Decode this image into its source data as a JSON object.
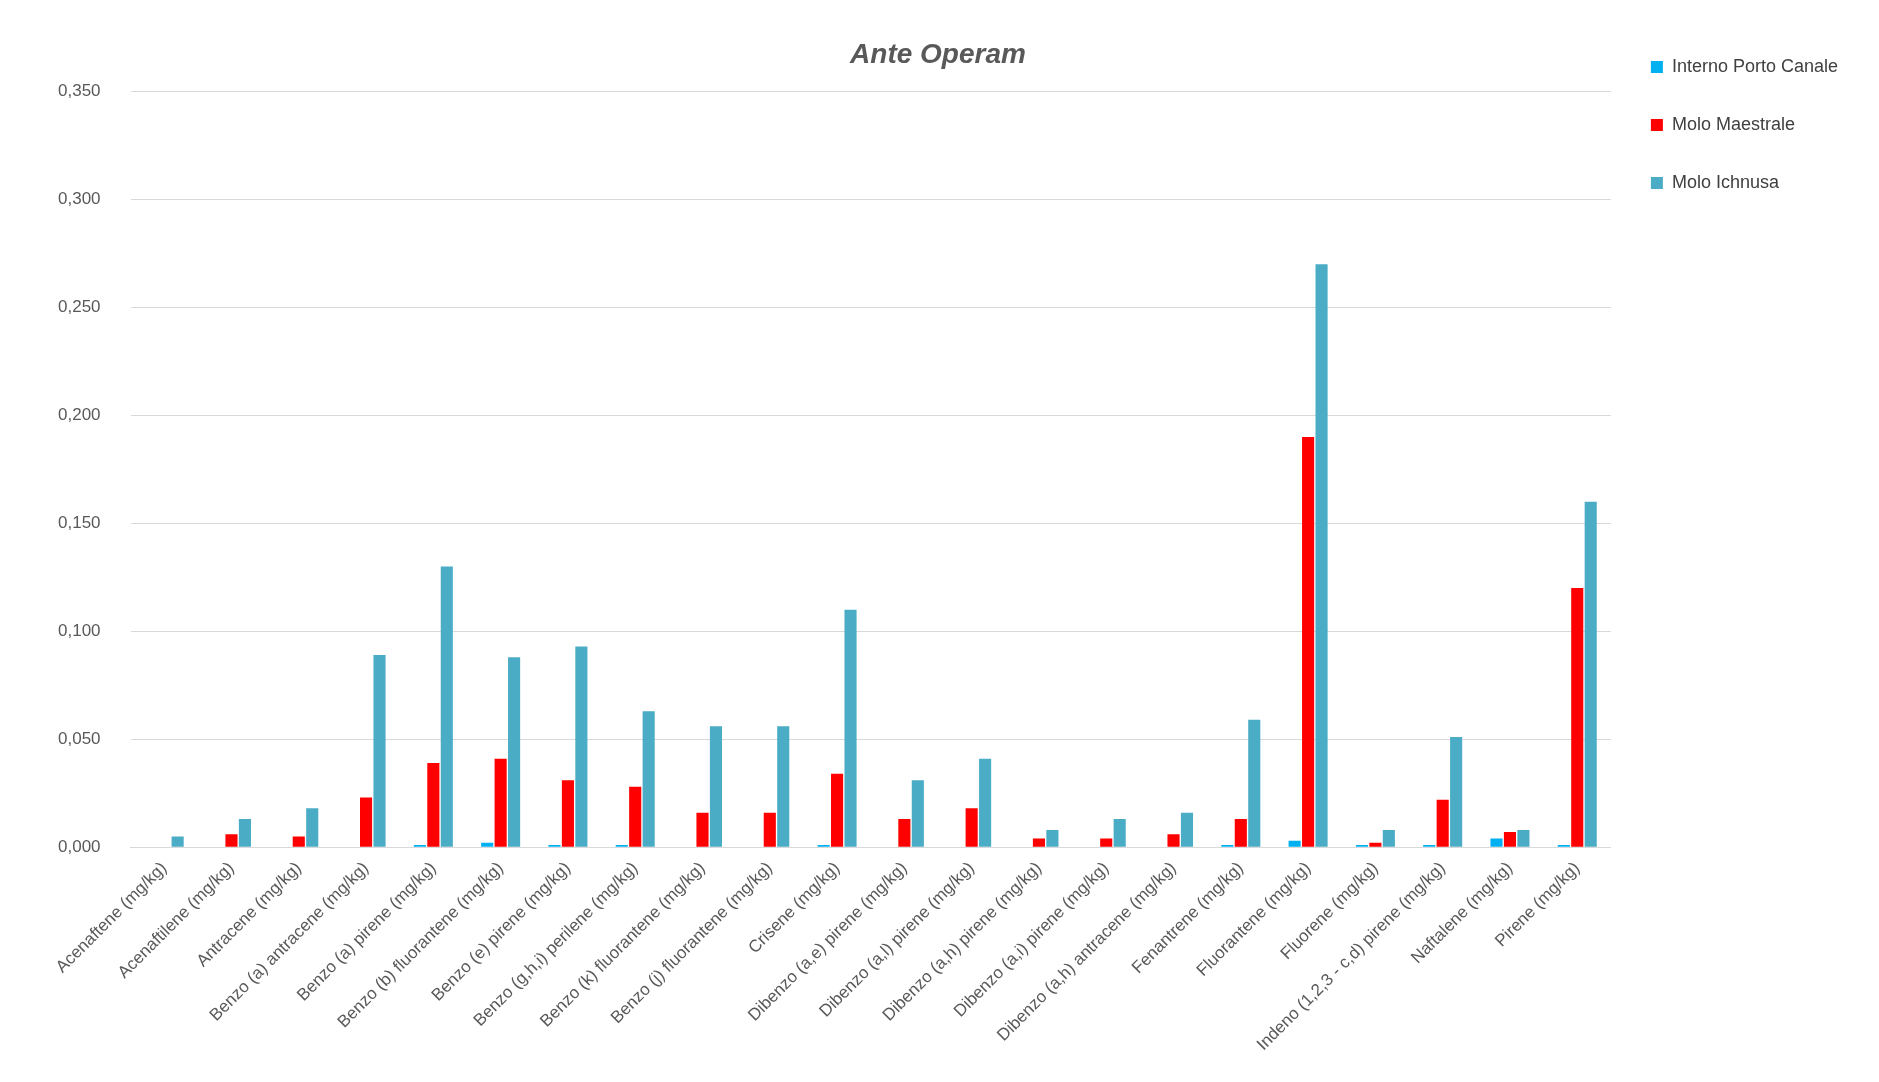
{
  "chart_data": {
    "type": "bar",
    "title": "Ante Operam",
    "categories": [
      "Acenaftene (mg/kg)",
      "Acenaftilene (mg/kg)",
      "Antracene (mg/kg)",
      "Benzo (a) antracene (mg/kg)",
      "Benzo (a) pirene (mg/kg)",
      "Benzo (b) fluorantene (mg/kg)",
      "Benzo (e) pirene (mg/kg)",
      "Benzo (g,h,i) perilene (mg/kg)",
      "Benzo (k) fluorantene (mg/kg)",
      "Benzo (j) fluorantene (mg/kg)",
      "Crisene (mg/kg)",
      "Dibenzo (a,e) pirene (mg/kg)",
      "Dibenzo (a,l) pirene (mg/kg)",
      "Dibenzo (a,h) pirene (mg/kg)",
      "Dibenzo (a,i) pirene (mg/kg)",
      "Dibenzo (a,h) antracene (mg/kg)",
      "Fenantrene (mg/kg)",
      "Fluorantene (mg/kg)",
      "Fluorene (mg/kg)",
      "Indeno (1,2,3 - c,d) pirene (mg/kg)",
      "Naftalene (mg/kg)",
      "Pirene (mg/kg)"
    ],
    "series": [
      {
        "name": "Interno Porto Canale",
        "color": "#00b0f0",
        "values": [
          0,
          0,
          0,
          0,
          0.001,
          0.002,
          0.001,
          0.001,
          0,
          0,
          0.001,
          0,
          0,
          0,
          0,
          0,
          0.001,
          0.003,
          0.001,
          0.001,
          0.004,
          0.001
        ]
      },
      {
        "name": "Molo Maestrale",
        "color": "#ff0000",
        "values": [
          0,
          0.006,
          0.005,
          0.023,
          0.039,
          0.041,
          0.031,
          0.028,
          0.016,
          0.016,
          0.034,
          0.013,
          0.018,
          0.004,
          0.004,
          0.006,
          0.013,
          0.19,
          0.002,
          0.022,
          0.007,
          0.12
        ]
      },
      {
        "name": "Molo Ichnusa",
        "color": "#4bacc6",
        "values": [
          0.005,
          0.013,
          0.018,
          0.089,
          0.13,
          0.088,
          0.093,
          0.063,
          0.056,
          0.056,
          0.11,
          0.031,
          0.041,
          0.008,
          0.013,
          0.016,
          0.059,
          0.27,
          0.008,
          0.051,
          0.008,
          0.16
        ]
      }
    ],
    "ylim": [
      0,
      0.35
    ],
    "yticks": [
      {
        "value": 0,
        "label": "0,000"
      },
      {
        "value": 0.05,
        "label": "0,050"
      },
      {
        "value": 0.1,
        "label": "0,100"
      },
      {
        "value": 0.15,
        "label": "0,150"
      },
      {
        "value": 0.2,
        "label": "0,200"
      },
      {
        "value": 0.25,
        "label": "0,250"
      },
      {
        "value": 0.3,
        "label": "0,300"
      },
      {
        "value": 0.35,
        "label": "0,350"
      }
    ],
    "grid": "y",
    "legend": "top right"
  }
}
